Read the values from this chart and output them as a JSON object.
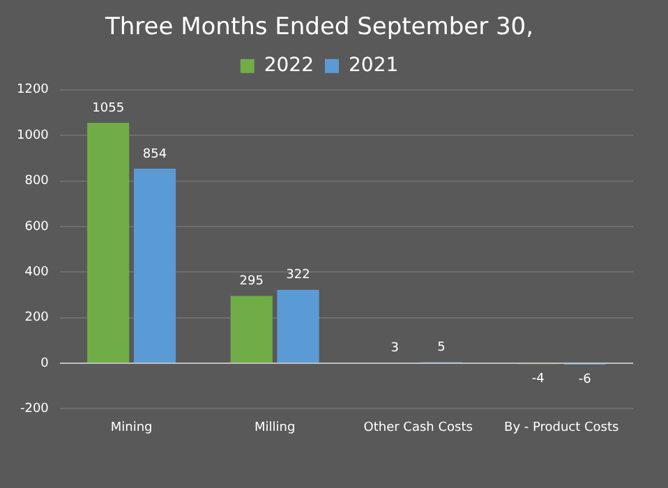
{
  "chart_data": {
    "type": "bar",
    "title": "Three Months Ended September 30,",
    "categories": [
      "Mining",
      "Milling",
      "Other Cash Costs",
      "By - Product Costs"
    ],
    "series": [
      {
        "name": "2022",
        "color": "#70ad47",
        "values": [
          1055,
          295,
          3,
          -4
        ]
      },
      {
        "name": "2021",
        "color": "#5b9bd5",
        "values": [
          854,
          322,
          5,
          -6
        ]
      }
    ],
    "ylim": [
      -200,
      1200
    ],
    "yticks": [
      -200,
      0,
      200,
      400,
      600,
      800,
      1000,
      1200
    ],
    "grid": "y",
    "legend": "top",
    "data_labels": true
  }
}
